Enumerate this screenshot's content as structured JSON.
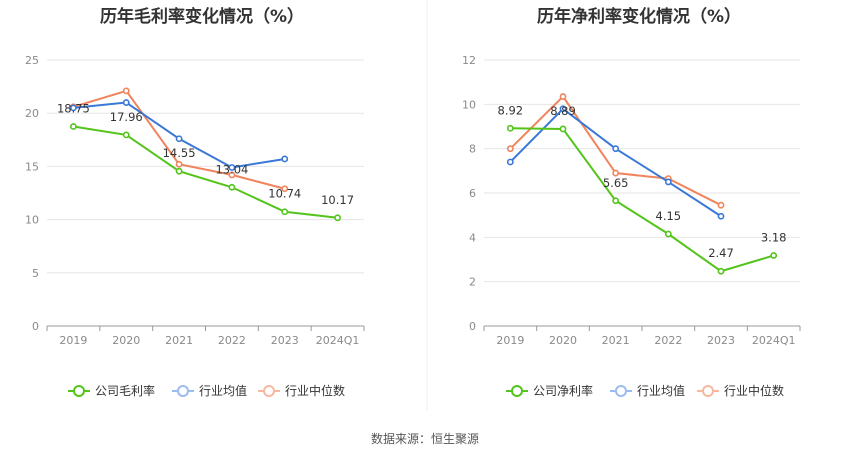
{
  "source_label": "数据来源：恒生聚源",
  "chart_data": [
    {
      "type": "line",
      "title": "历年毛利率变化情况（%）",
      "categories": [
        "2019",
        "2020",
        "2021",
        "2022",
        "2023",
        "2024Q1"
      ],
      "ylim": [
        0,
        25
      ],
      "yticks": [
        0,
        5,
        10,
        15,
        20,
        25
      ],
      "grid": true,
      "legend_position": "bottom",
      "series": [
        {
          "name": "公司毛利率",
          "color": "#52c41a",
          "values": [
            18.75,
            17.96,
            14.55,
            13.04,
            10.74,
            10.17
          ],
          "labels": [
            "18.75",
            "17.96",
            "14.55",
            "13.04",
            "10.74",
            "10.17"
          ]
        },
        {
          "name": "行业均值",
          "color": "#3a78d8",
          "values": [
            20.5,
            21.0,
            17.6,
            14.9,
            15.7,
            null
          ],
          "labels": []
        },
        {
          "name": "行业中位数",
          "color": "#f0845c",
          "values": [
            20.6,
            22.1,
            15.2,
            14.2,
            12.9,
            null
          ],
          "labels": []
        }
      ]
    },
    {
      "type": "line",
      "title": "历年净利率变化情况（%）",
      "categories": [
        "2019",
        "2020",
        "2021",
        "2022",
        "2023",
        "2024Q1"
      ],
      "ylim": [
        0,
        12
      ],
      "yticks": [
        0,
        2,
        4,
        6,
        8,
        10,
        12
      ],
      "grid": true,
      "legend_position": "bottom",
      "series": [
        {
          "name": "公司净利率",
          "color": "#52c41a",
          "values": [
            8.92,
            8.89,
            5.65,
            4.15,
            2.47,
            3.18
          ],
          "labels": [
            "8.92",
            "8.89",
            "5.65",
            "4.15",
            "2.47",
            "3.18"
          ]
        },
        {
          "name": "行业均值",
          "color": "#3a78d8",
          "values": [
            7.4,
            9.8,
            8.0,
            6.5,
            4.95,
            null
          ],
          "labels": []
        },
        {
          "name": "行业中位数",
          "color": "#f0845c",
          "values": [
            8.0,
            10.35,
            6.9,
            6.65,
            5.45,
            null
          ],
          "labels": []
        }
      ]
    }
  ]
}
